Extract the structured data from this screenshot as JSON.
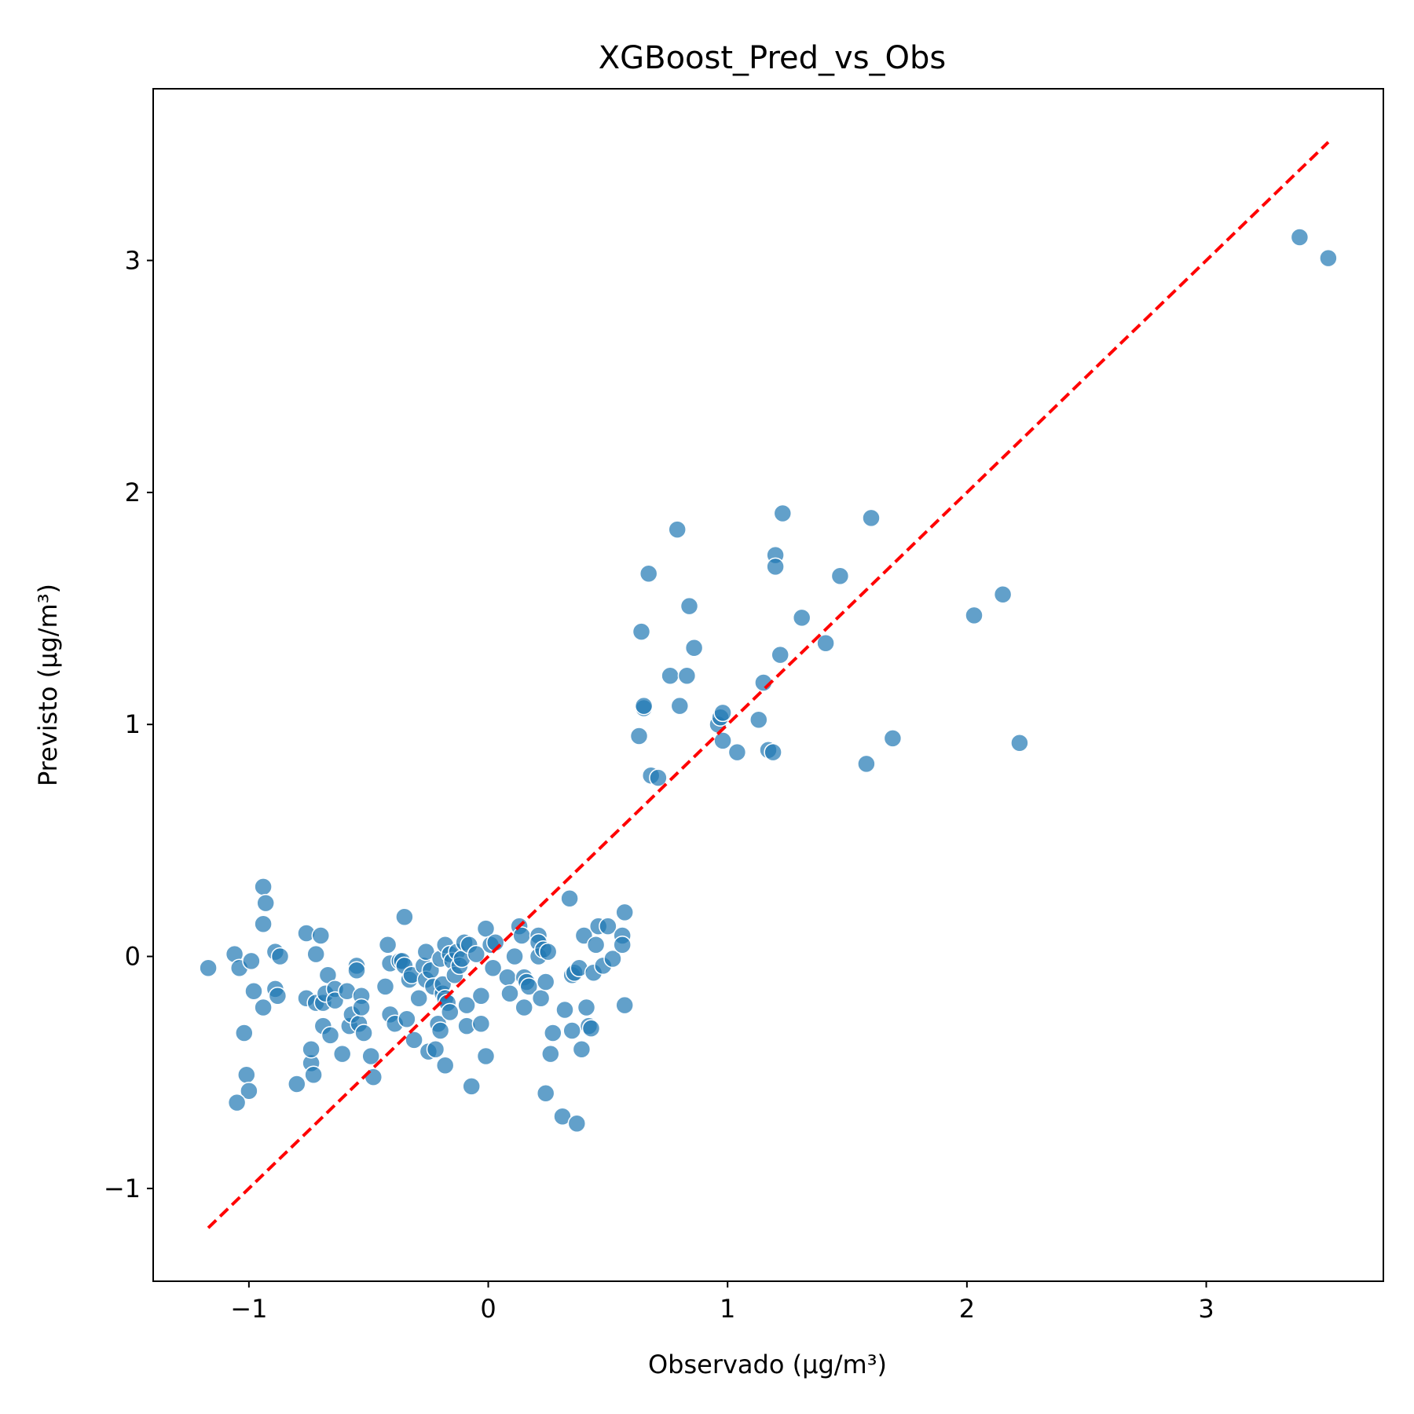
{
  "chart_data": {
    "type": "scatter",
    "title": "XGBoost_Pred_vs_Obs",
    "xlabel": "Observado (µg/m³)",
    "ylabel": "Previsto (µg/m³)",
    "xlim": [
      -1.4,
      3.74
    ],
    "ylim": [
      -1.4,
      3.74
    ],
    "xticks": [
      -1,
      0,
      1,
      2,
      3
    ],
    "yticks": [
      -1,
      0,
      1,
      2,
      3
    ],
    "xtick_labels": [
      "−1",
      "0",
      "1",
      "2",
      "3"
    ],
    "ytick_labels": [
      "−1",
      "0",
      "1",
      "2",
      "3"
    ],
    "grid": false,
    "legend": "none",
    "colors": {
      "points": "#1f77b4",
      "reference_line": "#ff0000",
      "point_edge": "#ffffff"
    },
    "reference_line": {
      "style": "dashed",
      "from": [
        -1.17,
        -1.17
      ],
      "to": [
        3.51,
        3.51
      ]
    },
    "series": [
      {
        "points": [
          [
            -1.17,
            -0.05
          ],
          [
            -1.06,
            0.01
          ],
          [
            -1.04,
            -0.05
          ],
          [
            -1.02,
            -0.33
          ],
          [
            -1.01,
            -0.51
          ],
          [
            -1.0,
            -0.58
          ],
          [
            -0.99,
            -0.02
          ],
          [
            -0.98,
            -0.15
          ],
          [
            -1.05,
            -0.63
          ],
          [
            -0.94,
            0.3
          ],
          [
            -0.93,
            0.23
          ],
          [
            -0.94,
            0.14
          ],
          [
            -0.94,
            -0.22
          ],
          [
            -0.89,
            0.02
          ],
          [
            -0.89,
            -0.14
          ],
          [
            -0.87,
            0.0
          ],
          [
            -0.88,
            -0.17
          ],
          [
            -0.76,
            0.1
          ],
          [
            -0.76,
            -0.18
          ],
          [
            -0.72,
            0.01
          ],
          [
            -0.72,
            -0.2
          ],
          [
            -0.7,
            0.09
          ],
          [
            -0.69,
            -0.2
          ],
          [
            -0.69,
            -0.3
          ],
          [
            -0.68,
            -0.16
          ],
          [
            -0.67,
            -0.08
          ],
          [
            -0.66,
            -0.34
          ],
          [
            -0.64,
            -0.14
          ],
          [
            -0.64,
            -0.19
          ],
          [
            -0.61,
            -0.42
          ],
          [
            -0.59,
            -0.15
          ],
          [
            -0.58,
            -0.3
          ],
          [
            -0.57,
            -0.25
          ],
          [
            -0.55,
            -0.04
          ],
          [
            -0.55,
            -0.06
          ],
          [
            -0.54,
            -0.29
          ],
          [
            -0.53,
            -0.17
          ],
          [
            -0.53,
            -0.22
          ],
          [
            -0.52,
            -0.33
          ],
          [
            -0.49,
            -0.43
          ],
          [
            -0.48,
            -0.52
          ],
          [
            -0.74,
            -0.46
          ],
          [
            -0.74,
            -0.4
          ],
          [
            -0.73,
            -0.51
          ],
          [
            -0.8,
            -0.55
          ],
          [
            -0.43,
            -0.13
          ],
          [
            -0.42,
            0.05
          ],
          [
            -0.41,
            -0.03
          ],
          [
            -0.41,
            -0.25
          ],
          [
            -0.39,
            -0.29
          ],
          [
            -0.37,
            -0.02
          ],
          [
            -0.36,
            -0.02
          ],
          [
            -0.35,
            0.17
          ],
          [
            -0.35,
            -0.04
          ],
          [
            -0.34,
            -0.27
          ],
          [
            -0.33,
            -0.1
          ],
          [
            -0.32,
            -0.08
          ],
          [
            -0.31,
            -0.36
          ],
          [
            -0.29,
            -0.18
          ],
          [
            -0.27,
            -0.04
          ],
          [
            -0.26,
            0.02
          ],
          [
            -0.26,
            -0.1
          ],
          [
            -0.25,
            -0.41
          ],
          [
            -0.24,
            -0.06
          ],
          [
            -0.23,
            -0.13
          ],
          [
            -0.22,
            -0.4
          ],
          [
            -0.21,
            -0.29
          ],
          [
            -0.2,
            -0.01
          ],
          [
            -0.2,
            -0.32
          ],
          [
            -0.19,
            -0.16
          ],
          [
            -0.19,
            -0.12
          ],
          [
            -0.18,
            0.05
          ],
          [
            -0.18,
            -0.18
          ],
          [
            -0.18,
            -0.47
          ],
          [
            -0.17,
            -0.2
          ],
          [
            -0.16,
            0.01
          ],
          [
            -0.16,
            -0.24
          ],
          [
            -0.15,
            -0.02
          ],
          [
            -0.14,
            -0.08
          ],
          [
            -0.13,
            0.02
          ],
          [
            -0.12,
            -0.04
          ],
          [
            -0.11,
            -0.01
          ],
          [
            -0.1,
            0.06
          ],
          [
            -0.09,
            -0.21
          ],
          [
            -0.09,
            -0.3
          ],
          [
            -0.08,
            0.05
          ],
          [
            -0.07,
            -0.56
          ],
          [
            -0.05,
            0.01
          ],
          [
            -0.03,
            -0.29
          ],
          [
            -0.03,
            -0.17
          ],
          [
            -0.01,
            0.12
          ],
          [
            -0.01,
            -0.43
          ],
          [
            0.01,
            0.05
          ],
          [
            0.02,
            -0.05
          ],
          [
            0.03,
            0.06
          ],
          [
            0.08,
            -0.09
          ],
          [
            0.09,
            -0.16
          ],
          [
            0.11,
            0.0
          ],
          [
            0.13,
            0.13
          ],
          [
            0.14,
            0.09
          ],
          [
            0.15,
            -0.09
          ],
          [
            0.15,
            -0.22
          ],
          [
            0.16,
            -0.11
          ],
          [
            0.17,
            -0.13
          ],
          [
            0.21,
            0.09
          ],
          [
            0.21,
            0.06
          ],
          [
            0.21,
            0.0
          ],
          [
            0.22,
            -0.18
          ],
          [
            0.23,
            0.03
          ],
          [
            0.24,
            -0.11
          ],
          [
            0.24,
            -0.59
          ],
          [
            0.25,
            0.02
          ],
          [
            0.26,
            -0.42
          ],
          [
            0.27,
            -0.33
          ],
          [
            0.31,
            -0.69
          ],
          [
            0.32,
            -0.23
          ],
          [
            0.34,
            0.25
          ],
          [
            0.35,
            -0.08
          ],
          [
            0.35,
            -0.32
          ],
          [
            0.36,
            -0.07
          ],
          [
            0.37,
            -0.72
          ],
          [
            0.38,
            -0.05
          ],
          [
            0.39,
            -0.4
          ],
          [
            0.4,
            0.09
          ],
          [
            0.41,
            -0.22
          ],
          [
            0.42,
            -0.3
          ],
          [
            0.43,
            -0.31
          ],
          [
            0.44,
            -0.07
          ],
          [
            0.45,
            0.05
          ],
          [
            0.46,
            0.13
          ],
          [
            0.48,
            -0.04
          ],
          [
            0.5,
            0.13
          ],
          [
            0.52,
            -0.01
          ],
          [
            0.56,
            0.09
          ],
          [
            0.56,
            0.05
          ],
          [
            0.57,
            0.19
          ],
          [
            0.57,
            -0.21
          ],
          [
            0.63,
            0.95
          ],
          [
            0.64,
            1.4
          ],
          [
            0.65,
            1.07
          ],
          [
            0.65,
            1.08
          ],
          [
            0.67,
            1.65
          ],
          [
            0.68,
            0.78
          ],
          [
            0.71,
            0.77
          ],
          [
            0.76,
            1.21
          ],
          [
            0.79,
            1.84
          ],
          [
            0.8,
            1.08
          ],
          [
            0.83,
            1.21
          ],
          [
            0.84,
            1.51
          ],
          [
            0.86,
            1.33
          ],
          [
            0.96,
            1.0
          ],
          [
            0.97,
            1.03
          ],
          [
            0.98,
            1.05
          ],
          [
            0.98,
            0.93
          ],
          [
            1.04,
            0.88
          ],
          [
            1.13,
            1.02
          ],
          [
            1.15,
            1.18
          ],
          [
            1.17,
            0.89
          ],
          [
            1.19,
            0.88
          ],
          [
            1.2,
            1.73
          ],
          [
            1.2,
            1.68
          ],
          [
            1.22,
            1.3
          ],
          [
            1.23,
            1.91
          ],
          [
            1.31,
            1.46
          ],
          [
            1.41,
            1.35
          ],
          [
            1.47,
            1.64
          ],
          [
            1.58,
            0.83
          ],
          [
            1.6,
            1.89
          ],
          [
            1.69,
            0.94
          ],
          [
            2.03,
            1.47
          ],
          [
            2.15,
            1.56
          ],
          [
            2.22,
            0.92
          ],
          [
            3.39,
            3.1
          ],
          [
            3.51,
            3.01
          ]
        ]
      }
    ]
  }
}
